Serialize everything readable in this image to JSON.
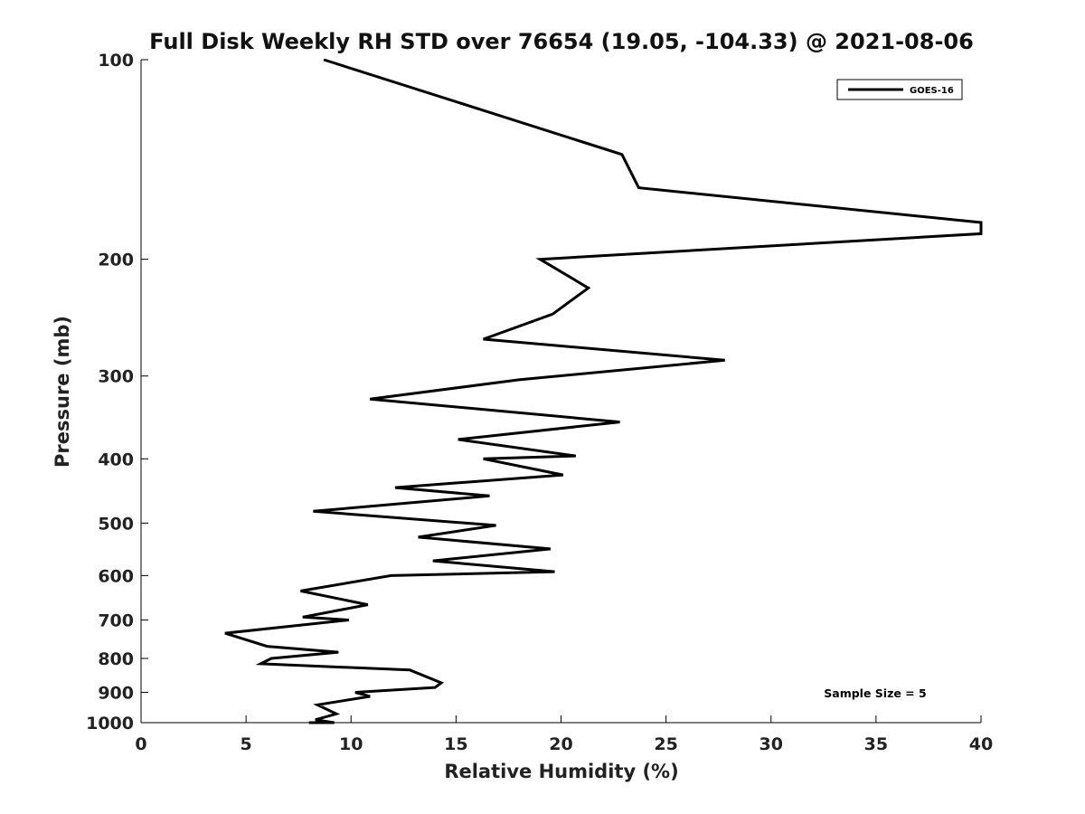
{
  "chart_data": {
    "type": "line",
    "title": "Full Disk Weekly RH STD over 76654 (19.05, -104.33) @ 2021-08-06",
    "xlabel": "Relative Humidity (%)",
    "ylabel": "Pressure (mb)",
    "xlim": [
      0,
      40
    ],
    "ylim": [
      100,
      1000
    ],
    "yscale": "log",
    "y_reversed": true,
    "xticks": [
      0,
      5,
      10,
      15,
      20,
      25,
      30,
      35,
      40
    ],
    "yticks": [
      100,
      200,
      300,
      400,
      500,
      600,
      700,
      800,
      900,
      1000
    ],
    "grid": false,
    "legend_position": "top-right",
    "series": [
      {
        "name": "GOES-16",
        "color": "#000000",
        "rh": [
          8.7,
          22.9,
          23.7,
          40.0,
          40.0,
          19.0,
          21.3,
          19.6,
          16.3,
          27.8,
          18.0,
          10.9,
          22.8,
          15.1,
          20.7,
          16.3,
          20.1,
          12.1,
          16.6,
          8.2,
          16.9,
          13.2,
          19.5,
          13.9,
          19.7,
          11.9,
          7.6,
          10.8,
          7.7,
          9.9,
          4.0,
          6.0,
          9.4,
          6.2,
          5.7,
          12.8,
          14.3,
          14.0,
          10.2,
          10.9,
          8.4,
          9.3,
          8.3,
          9.2,
          8.0
        ],
        "pressure": [
          100,
          139,
          156,
          176,
          183,
          200,
          221,
          242,
          264,
          284,
          304,
          325,
          352,
          374,
          396,
          400,
          423,
          442,
          455,
          480,
          504,
          525,
          547,
          570,
          592,
          600,
          633,
          664,
          693,
          700,
          733,
          767,
          783,
          800,
          815,
          833,
          871,
          885,
          900,
          913,
          940,
          970,
          990,
          1000,
          1000
        ]
      }
    ],
    "annotation": "Sample Size = 5"
  }
}
